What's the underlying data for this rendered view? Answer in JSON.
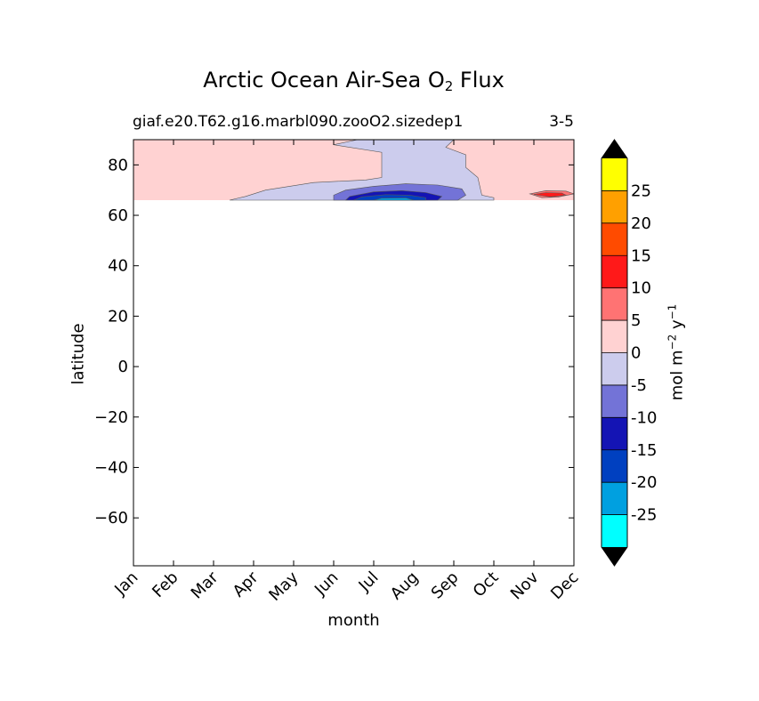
{
  "header": {
    "title_main": "Arctic Ocean Air-Sea O",
    "title_sub": "2",
    "title_end": " Flux",
    "case_name": "giaf.e20.T62.g16.marbl090.zooO2.sizedep1",
    "years": "3-5"
  },
  "colorbar": {
    "unit_prefix": "mol m",
    "unit_exp1": "−2",
    "unit_mid": " y",
    "unit_exp2": "−1",
    "levels": [
      -30,
      -25,
      -20,
      -15,
      -10,
      -5,
      0,
      5,
      10,
      15,
      20,
      25,
      30
    ],
    "tick_labels": [
      "-25",
      "-20",
      "-15",
      "-10",
      "-5",
      "0",
      "5",
      "10",
      "15",
      "20",
      "25"
    ],
    "colors": [
      "#00ffff",
      "#00a0e0",
      "#0040c0",
      "#1414b4",
      "#7373d7",
      "#cccced",
      "#ffd2d2",
      "#ff7373",
      "#ff1919",
      "#ff4b00",
      "#ffa000",
      "#ffff00"
    ],
    "extend_color": "#000000"
  },
  "chart_data": {
    "type": "contourf",
    "title": "Arctic Ocean Air-Sea O2 Flux",
    "xlabel": "month",
    "ylabel": "latitude",
    "x_categories": [
      "Jan",
      "Feb",
      "Mar",
      "Apr",
      "May",
      "Jun",
      "Jul",
      "Aug",
      "Sep",
      "Oct",
      "Nov",
      "Dec"
    ],
    "xlim": [
      "Jan",
      "Dec"
    ],
    "ylim": [
      -79,
      90
    ],
    "yticks": [
      -60,
      -40,
      -20,
      0,
      20,
      40,
      60,
      80
    ],
    "ytick_labels": [
      "−60",
      "−40",
      "−20",
      "0",
      "20",
      "40",
      "60",
      "80"
    ],
    "data_region_lat": [
      66,
      90
    ],
    "grid": false,
    "contour_regions": [
      {
        "level_range": [
          0,
          5
        ],
        "description_extent": "Jan–Dec background",
        "points": [
          [
            1,
            66
          ],
          [
            12,
            66
          ],
          [
            12,
            90
          ],
          [
            1,
            90
          ]
        ]
      },
      {
        "level_range": [
          -5,
          0
        ],
        "points": [
          [
            3.4,
            66
          ],
          [
            3.8,
            67.5
          ],
          [
            4.3,
            70
          ],
          [
            5.5,
            73
          ],
          [
            6.8,
            74
          ],
          [
            7.2,
            75
          ],
          [
            7.2,
            85
          ],
          [
            6.0,
            88
          ],
          [
            6.6,
            90
          ],
          [
            9.0,
            90
          ],
          [
            8.8,
            87
          ],
          [
            9.3,
            84
          ],
          [
            9.3,
            79
          ],
          [
            9.6,
            75
          ],
          [
            9.7,
            68
          ],
          [
            10.0,
            67
          ],
          [
            10.0,
            66
          ]
        ]
      },
      {
        "level_range": [
          -10,
          -5
        ],
        "points": [
          [
            6.0,
            66
          ],
          [
            6.0,
            68
          ],
          [
            6.3,
            70
          ],
          [
            7.0,
            71.5
          ],
          [
            7.8,
            72.5
          ],
          [
            8.6,
            72
          ],
          [
            9.2,
            70.5
          ],
          [
            9.3,
            68
          ],
          [
            9.1,
            66
          ]
        ]
      },
      {
        "level_range": [
          -15,
          -10
        ],
        "points": [
          [
            6.3,
            66
          ],
          [
            6.4,
            67.5
          ],
          [
            7.0,
            69.3
          ],
          [
            7.7,
            69.8
          ],
          [
            8.3,
            69
          ],
          [
            8.7,
            67.5
          ],
          [
            8.6,
            66
          ]
        ]
      },
      {
        "level_range": [
          -20,
          -15
        ],
        "points": [
          [
            6.5,
            66
          ],
          [
            6.7,
            67.3
          ],
          [
            7.3,
            68.2
          ],
          [
            7.9,
            68
          ],
          [
            8.3,
            67
          ],
          [
            8.3,
            66
          ]
        ]
      },
      {
        "level_range": [
          -25,
          -20
        ],
        "points": [
          [
            7.0,
            66
          ],
          [
            7.2,
            66.8
          ],
          [
            7.8,
            66.9
          ],
          [
            8.0,
            66
          ]
        ]
      },
      {
        "level_range": [
          5,
          10
        ],
        "points": [
          [
            10.9,
            68.5
          ],
          [
            11.3,
            69.8
          ],
          [
            11.8,
            69.6
          ],
          [
            12.0,
            68.5
          ],
          [
            11.6,
            67.2
          ],
          [
            11.2,
            67.0
          ]
        ]
      },
      {
        "level_range": [
          10,
          15
        ],
        "points": [
          [
            11.0,
            68.3
          ],
          [
            11.3,
            69.0
          ],
          [
            11.7,
            68.8
          ],
          [
            11.8,
            68.0
          ],
          [
            11.4,
            67.3
          ]
        ]
      }
    ]
  }
}
